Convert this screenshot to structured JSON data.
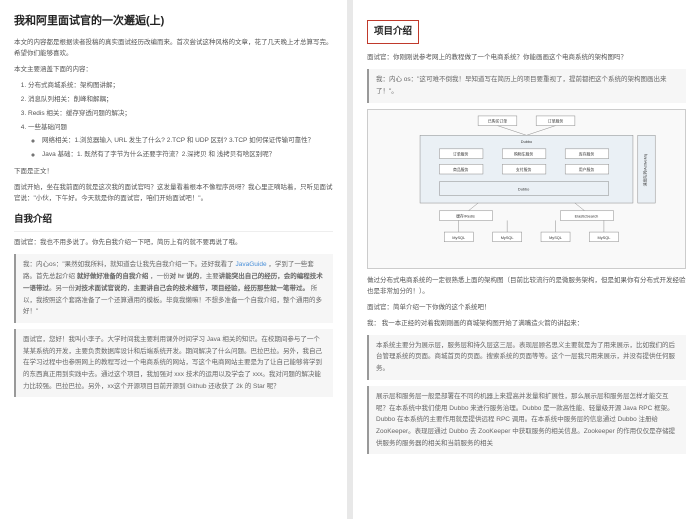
{
  "left": {
    "title": "我和阿里面试官的一次邂逅(上)",
    "intro1": "本文的内容都是根据读者投稿的真实面试经历改编而来。首次尝试这种风格的文章，花了几天晚上才总算写完。希望你们能够喜欢。",
    "intro2": "本文主要涵盖下面的内容：",
    "list": {
      "i1": "分布式商城系统：架构图讲解；",
      "i2": "消息队列相关：削峰和解耦；",
      "i3": "Redis 相关：缓存穿透问题的解决；",
      "i4": "一些基础问题",
      "i4a": "网络相关：1.浏览器输入 URL 发生了什么?  2.TCP 和 UDP 区别? 3.TCP 如何保证传输可靠性？",
      "i4b": "Java 基础：1. 既然有了字节为什么还要字符流？2.深拷贝 和 浅拷贝有啥区别呢？"
    },
    "belowHeader": "下面是正文！",
    "para1": "面试开始，坐在我前面的就是这次我的面试官吗？这发量看着根本不像程序员呀？我心里正嘀咕着，只听见面试官说：\"小伙，下午好。今天就是你的面试官，咱们开始面试吧！\"。",
    "h2_self": "自我介绍",
    "para2": "面试官：我也不用多说了。你先自我介绍一下吧，简历上有的就不要再说了哦。",
    "quote1": "我：内心os：\"果然如我所料，就知道会让我先自我介绍一下。还好我看了 <span class='link'>JavaGuide</span> ，学到了一些套路。首先总起介绍 <b>就好做好准备的自我介绍</b> ，一份<b>对 hr 说的</b>，主要<b>讲能突出自己的经历，会的编程技术一语带过</b>。另一份<b>对技术面试官说的</b>，<b>主要讲自己会的技术细节，项目经验，经历那些就一笔带过。</b> 所以，我按照这个套路准备了一个还算通用的模板。毕竟我懒嘛！不想多准备一个自我介绍，整个通用的多好！\"",
    "quote2": "面试官，您好！我叫小李子。大学时间我主要利用课外时间学习 Java 相关的知识。在校期间参与了一个某某系统的开发，主要负责数据库设计和后端系统开发。期间解决了什么问题。巴拉巴拉。另外，我自己在学习过程中也参照网上的教程写过一个电商系统的网站，写这个电商网站主要是为了让自己能够将学到的东西真正用到实践中去。通过这个项目，我加强对 xxx 技术的运用以及学会了 xxx。我对问题的解决能力比较强。巴拉巴拉。另外，xx这个开源项目目前开源到 Github 还收获了 2k 的 Star 呢？"
  },
  "right": {
    "h2_proj": "项目介绍",
    "para1": "面试官：你刚刚说参考网上的教程做了一个电商系统？你能画画这个电商系统的架构图吗？",
    "quote1": "我：内心 os：\"这可难不倒我！早知道写在简历上的项目要重视了，提前都把这个系统的架构图画出来了！\"。",
    "diagram": {
      "nodes": {
        "top1": "已购买订单",
        "top2": "订单服务",
        "gateway": "Dubbo",
        "row1": [
          "订单服务",
          "购物车服务",
          "库存服务"
        ],
        "row2": [
          "商品服务",
          "支付服务",
          "用户服务"
        ],
        "bus": "Dubbo",
        "redis": "缓存/Redis",
        "es": "ElasticSearch",
        "side": "消息队列/ActiveMq",
        "db": [
          "MySQL",
          "MySQL",
          "MySQL",
          "MySQL"
        ]
      },
      "colors": {
        "box_fill": "#ffffff",
        "region_fill": "#eaf0f5",
        "stroke": "#888888",
        "bg": "#f9f9f9"
      }
    },
    "para2": "做过分布式电商系统的一定很熟悉上面的架构图（目前比较流行的是微服务架构，但是如果你有分布式开发经验也是非常加分的！）。",
    "para3": "面试官：简单介绍一下你做的这个系统吧！",
    "para4": "我： 我一本正经的对着我刚刚画的商城架构图开始了满嘴造火箭的讲起来：",
    "quote2": "本系统主要分为展示层，服务层和持久层这三层。表现层顾名思义主要就是为了用来展示，比如我们的后台管理系统的页面。商城首页的页面。搜索系统的页面等等。这个一层我只用来展示，并没有提供任何服务。",
    "quote3": "展示层和服务层一般是部署在不同的机器上来提高并发量和扩展性，那么展示层和服务层怎样才能交互呢？在本系统中我们使用 Dubbo 来进行服务治理。Dubbo 是一款高性能、轻量级开源 Java RPC 框架。Dubbo 在本系统的主要作用就是提供远程 RPC 调用。在本系统中服务层的信息通过 Dubbo 注册给 ZooKeeper。表现层通过 Dubbo 去 ZooKeeper 中获取服务的相关信息。Zookeeper 的作用仅仅是存储提供服务的服务器的相关和当前服务的相关"
  }
}
